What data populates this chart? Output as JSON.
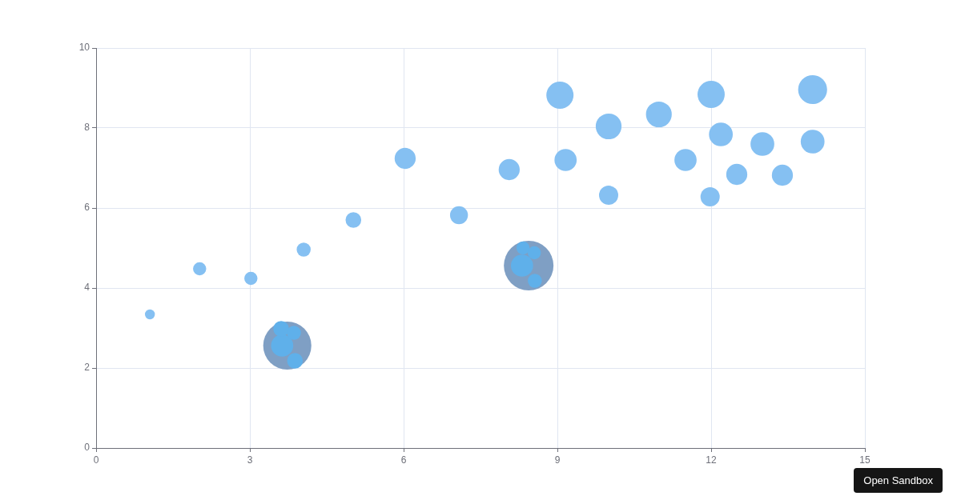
{
  "chart_data": {
    "type": "bubble",
    "series": [
      {
        "color": "#85c0f2",
        "x": [
          1.05,
          2.02,
          3.02,
          4.05,
          5.02,
          6.03,
          7.08,
          8.06,
          9.05,
          9.16,
          10.0,
          10.0,
          10.98,
          11.5,
          12.0,
          11.98,
          12.19,
          12.5,
          13.0,
          13.39,
          13.98,
          13.98
        ],
        "values": [
          3.34,
          4.48,
          4.24,
          4.96,
          5.7,
          7.24,
          5.82,
          6.96,
          8.82,
          7.2,
          8.04,
          6.32,
          8.34,
          7.2,
          8.84,
          6.28,
          7.84,
          6.84,
          7.6,
          6.82,
          8.96,
          7.66
        ],
        "sizes": [
          0.04,
          0.07,
          0.07,
          0.08,
          0.1,
          0.18,
          0.13,
          0.18,
          0.3,
          0.2,
          0.27,
          0.15,
          0.27,
          0.2,
          0.3,
          0.15,
          0.23,
          0.18,
          0.23,
          0.18,
          0.34,
          0.23
        ]
      },
      {
        "color": "#7f9fc4",
        "x": [
          3.73,
          8.44
        ],
        "values": [
          2.56,
          4.56
        ],
        "sizes": [
          0.94,
          1
        ]
      },
      {
        "color": "#5fb0ea",
        "x": [
          3.63,
          3.61,
          3.86,
          3.88,
          8.31,
          8.33,
          8.55,
          8.56
        ],
        "values": [
          2.56,
          2.98,
          2.88,
          2.18,
          4.56,
          5.0,
          4.88,
          4.18
        ],
        "sizes": [
          0.2,
          0.1,
          0.08,
          0.1,
          0.2,
          0.07,
          0.07,
          0.08
        ]
      }
    ],
    "xlim": [
      0,
      15
    ],
    "xticks": [
      0,
      3,
      6,
      9,
      12,
      15
    ],
    "ylim": [
      0,
      10
    ],
    "yticks": [
      0,
      2,
      4,
      6,
      8,
      10
    ],
    "grid": true,
    "legend": false,
    "annotations": [
      "Open Sandbox"
    ]
  }
}
